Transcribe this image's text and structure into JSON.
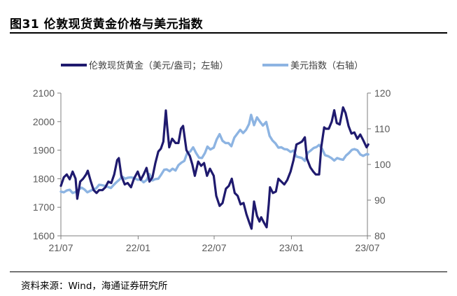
{
  "header": {
    "title": "图31 伦敦现货黄金价格与美元指数"
  },
  "footer": {
    "source": "资料来源：Wind，海通证券研究所"
  },
  "chart_data": {
    "type": "line",
    "title": "图31 伦敦现货黄金价格与美元指数",
    "x_ticks": [
      "21/07",
      "22/01",
      "22/07",
      "23/01",
      "23/07"
    ],
    "x_range": [
      "2021-07",
      "2023-07"
    ],
    "y_left": {
      "ticks": [
        1600,
        1700,
        1800,
        1900,
        2000,
        2100
      ],
      "range": [
        1600,
        2100
      ]
    },
    "y_right": {
      "ticks": [
        80,
        90,
        100,
        110,
        120
      ],
      "range": [
        80,
        120
      ]
    },
    "legend_position": "top",
    "series": [
      {
        "name": "伦敦现货黄金（美元/盎司；左轴）",
        "axis": "left",
        "color": "#1f1a6e",
        "points": [
          [
            "2021-07-01",
            1775
          ],
          [
            "2021-07-08",
            1805
          ],
          [
            "2021-07-15",
            1815
          ],
          [
            "2021-07-22",
            1798
          ],
          [
            "2021-07-29",
            1825
          ],
          [
            "2021-08-05",
            1800
          ],
          [
            "2021-08-09",
            1730
          ],
          [
            "2021-08-16",
            1790
          ],
          [
            "2021-08-23",
            1800
          ],
          [
            "2021-08-30",
            1815
          ],
          [
            "2021-09-03",
            1828
          ],
          [
            "2021-09-10",
            1792
          ],
          [
            "2021-09-17",
            1760
          ],
          [
            "2021-09-24",
            1750
          ],
          [
            "2021-09-30",
            1760
          ],
          [
            "2021-10-08",
            1760
          ],
          [
            "2021-10-15",
            1770
          ],
          [
            "2021-10-22",
            1790
          ],
          [
            "2021-10-29",
            1785
          ],
          [
            "2021-11-05",
            1815
          ],
          [
            "2021-11-12",
            1865
          ],
          [
            "2021-11-16",
            1872
          ],
          [
            "2021-11-22",
            1810
          ],
          [
            "2021-11-30",
            1780
          ],
          [
            "2021-12-07",
            1785
          ],
          [
            "2021-12-15",
            1770
          ],
          [
            "2021-12-22",
            1800
          ],
          [
            "2021-12-31",
            1825
          ],
          [
            "2022-01-07",
            1796
          ],
          [
            "2022-01-14",
            1815
          ],
          [
            "2022-01-21",
            1838
          ],
          [
            "2022-01-28",
            1790
          ],
          [
            "2022-02-04",
            1805
          ],
          [
            "2022-02-11",
            1855
          ],
          [
            "2022-02-18",
            1895
          ],
          [
            "2022-02-24",
            1905
          ],
          [
            "2022-03-02",
            1930
          ],
          [
            "2022-03-08",
            2039
          ],
          [
            "2022-03-11",
            1985
          ],
          [
            "2022-03-16",
            1910
          ],
          [
            "2022-03-23",
            1940
          ],
          [
            "2022-03-31",
            1925
          ],
          [
            "2022-04-07",
            1925
          ],
          [
            "2022-04-13",
            1975
          ],
          [
            "2022-04-18",
            1985
          ],
          [
            "2022-04-26",
            1900
          ],
          [
            "2022-05-04",
            1880
          ],
          [
            "2022-05-10",
            1850
          ],
          [
            "2022-05-16",
            1810
          ],
          [
            "2022-05-24",
            1860
          ],
          [
            "2022-05-31",
            1845
          ],
          [
            "2022-06-07",
            1855
          ],
          [
            "2022-06-14",
            1810
          ],
          [
            "2022-06-21",
            1835
          ],
          [
            "2022-06-30",
            1810
          ],
          [
            "2022-07-06",
            1740
          ],
          [
            "2022-07-14",
            1705
          ],
          [
            "2022-07-21",
            1715
          ],
          [
            "2022-07-29",
            1765
          ],
          [
            "2022-08-05",
            1775
          ],
          [
            "2022-08-12",
            1800
          ],
          [
            "2022-08-19",
            1750
          ],
          [
            "2022-08-26",
            1740
          ],
          [
            "2022-09-02",
            1710
          ],
          [
            "2022-09-09",
            1715
          ],
          [
            "2022-09-16",
            1675
          ],
          [
            "2022-09-23",
            1645
          ],
          [
            "2022-09-28",
            1625
          ],
          [
            "2022-10-04",
            1720
          ],
          [
            "2022-10-11",
            1670
          ],
          [
            "2022-10-17",
            1650
          ],
          [
            "2022-10-21",
            1665
          ],
          [
            "2022-10-28",
            1645
          ],
          [
            "2022-11-03",
            1630
          ],
          [
            "2022-11-08",
            1710
          ],
          [
            "2022-11-11",
            1770
          ],
          [
            "2022-11-18",
            1750
          ],
          [
            "2022-11-25",
            1755
          ],
          [
            "2022-12-01",
            1800
          ],
          [
            "2022-12-08",
            1790
          ],
          [
            "2022-12-15",
            1780
          ],
          [
            "2022-12-22",
            1795
          ],
          [
            "2022-12-30",
            1825
          ],
          [
            "2023-01-06",
            1865
          ],
          [
            "2023-01-13",
            1920
          ],
          [
            "2023-01-20",
            1925
          ],
          [
            "2023-01-26",
            1930
          ],
          [
            "2023-02-02",
            1945
          ],
          [
            "2023-02-07",
            1870
          ],
          [
            "2023-02-15",
            1840
          ],
          [
            "2023-02-22",
            1825
          ],
          [
            "2023-02-28",
            1815
          ],
          [
            "2023-03-08",
            1815
          ],
          [
            "2023-03-13",
            1910
          ],
          [
            "2023-03-20",
            1980
          ],
          [
            "2023-03-24",
            1975
          ],
          [
            "2023-03-31",
            1975
          ],
          [
            "2023-04-07",
            2000
          ],
          [
            "2023-04-13",
            2040
          ],
          [
            "2023-04-19",
            1995
          ],
          [
            "2023-04-26",
            1990
          ],
          [
            "2023-05-04",
            2050
          ],
          [
            "2023-05-10",
            2030
          ],
          [
            "2023-05-17",
            1985
          ],
          [
            "2023-05-24",
            1958
          ],
          [
            "2023-05-31",
            1962
          ],
          [
            "2023-06-07",
            1940
          ],
          [
            "2023-06-14",
            1955
          ],
          [
            "2023-06-21",
            1935
          ],
          [
            "2023-06-29",
            1910
          ],
          [
            "2023-07-03",
            1920
          ]
        ]
      },
      {
        "name": "美元指数（右轴）",
        "axis": "right",
        "color": "#8db4e2",
        "points": [
          [
            "2021-07-01",
            92.4
          ],
          [
            "2021-07-08",
            92.2
          ],
          [
            "2021-07-15",
            92.7
          ],
          [
            "2021-07-22",
            92.9
          ],
          [
            "2021-07-29",
            92.0
          ],
          [
            "2021-08-05",
            92.3
          ],
          [
            "2021-08-12",
            92.9
          ],
          [
            "2021-08-19",
            93.5
          ],
          [
            "2021-08-26",
            93.0
          ],
          [
            "2021-09-02",
            92.2
          ],
          [
            "2021-09-09",
            92.6
          ],
          [
            "2021-09-16",
            93.0
          ],
          [
            "2021-09-23",
            93.3
          ],
          [
            "2021-09-30",
            94.3
          ],
          [
            "2021-10-07",
            94.2
          ],
          [
            "2021-10-14",
            94.0
          ],
          [
            "2021-10-21",
            93.7
          ],
          [
            "2021-10-28",
            93.4
          ],
          [
            "2021-11-04",
            94.3
          ],
          [
            "2021-11-11",
            95.1
          ],
          [
            "2021-11-18",
            95.8
          ],
          [
            "2021-11-24",
            96.6
          ],
          [
            "2021-12-01",
            96.0
          ],
          [
            "2021-12-08",
            96.3
          ],
          [
            "2021-12-15",
            96.4
          ],
          [
            "2021-12-22",
            96.2
          ],
          [
            "2021-12-31",
            95.7
          ],
          [
            "2022-01-07",
            95.8
          ],
          [
            "2022-01-14",
            95.0
          ],
          [
            "2022-01-21",
            95.6
          ],
          [
            "2022-01-28",
            97.3
          ],
          [
            "2022-02-04",
            95.5
          ],
          [
            "2022-02-11",
            95.9
          ],
          [
            "2022-02-18",
            96.0
          ],
          [
            "2022-02-24",
            97.0
          ],
          [
            "2022-03-04",
            98.5
          ],
          [
            "2022-03-10",
            98.6
          ],
          [
            "2022-03-17",
            98.1
          ],
          [
            "2022-03-24",
            98.8
          ],
          [
            "2022-03-31",
            98.3
          ],
          [
            "2022-04-07",
            99.8
          ],
          [
            "2022-04-14",
            100.5
          ],
          [
            "2022-04-21",
            101.0
          ],
          [
            "2022-04-28",
            103.3
          ],
          [
            "2022-05-05",
            103.6
          ],
          [
            "2022-05-12",
            104.8
          ],
          [
            "2022-05-19",
            103.2
          ],
          [
            "2022-05-26",
            101.9
          ],
          [
            "2022-06-02",
            101.8
          ],
          [
            "2022-06-09",
            103.2
          ],
          [
            "2022-06-15",
            105.0
          ],
          [
            "2022-06-22",
            104.2
          ],
          [
            "2022-06-30",
            104.7
          ],
          [
            "2022-07-07",
            107.0
          ],
          [
            "2022-07-14",
            108.5
          ],
          [
            "2022-07-21",
            106.6
          ],
          [
            "2022-07-28",
            106.0
          ],
          [
            "2022-08-04",
            106.0
          ],
          [
            "2022-08-11",
            105.1
          ],
          [
            "2022-08-18",
            107.5
          ],
          [
            "2022-08-25",
            108.6
          ],
          [
            "2022-09-01",
            109.7
          ],
          [
            "2022-09-08",
            108.8
          ],
          [
            "2022-09-15",
            109.7
          ],
          [
            "2022-09-22",
            111.3
          ],
          [
            "2022-09-27",
            113.9
          ],
          [
            "2022-10-04",
            111.0
          ],
          [
            "2022-10-11",
            113.2
          ],
          [
            "2022-10-18",
            112.0
          ],
          [
            "2022-10-25",
            110.9
          ],
          [
            "2022-11-02",
            111.9
          ],
          [
            "2022-11-10",
            108.0
          ],
          [
            "2022-11-17",
            106.7
          ],
          [
            "2022-11-24",
            105.9
          ],
          [
            "2022-12-01",
            104.7
          ],
          [
            "2022-12-08",
            104.8
          ],
          [
            "2022-12-15",
            104.3
          ],
          [
            "2022-12-22",
            104.2
          ],
          [
            "2022-12-30",
            103.5
          ],
          [
            "2023-01-06",
            103.9
          ],
          [
            "2023-01-13",
            102.2
          ],
          [
            "2023-01-20",
            102.0
          ],
          [
            "2023-01-26",
            101.8
          ],
          [
            "2023-02-02",
            101.0
          ],
          [
            "2023-02-09",
            103.3
          ],
          [
            "2023-02-16",
            103.9
          ],
          [
            "2023-02-23",
            104.6
          ],
          [
            "2023-03-02",
            104.9
          ],
          [
            "2023-03-08",
            105.5
          ],
          [
            "2023-03-15",
            104.4
          ],
          [
            "2023-03-22",
            102.6
          ],
          [
            "2023-03-30",
            102.3
          ],
          [
            "2023-04-06",
            101.8
          ],
          [
            "2023-04-13",
            101.1
          ],
          [
            "2023-04-20",
            101.8
          ],
          [
            "2023-04-27",
            101.5
          ],
          [
            "2023-05-04",
            101.3
          ],
          [
            "2023-05-11",
            102.5
          ],
          [
            "2023-05-18",
            103.2
          ],
          [
            "2023-05-25",
            104.1
          ],
          [
            "2023-05-31",
            104.3
          ],
          [
            "2023-06-07",
            104.0
          ],
          [
            "2023-06-14",
            102.8
          ],
          [
            "2023-06-21",
            102.4
          ],
          [
            "2023-06-29",
            102.9
          ],
          [
            "2023-07-03",
            102.8
          ]
        ]
      }
    ]
  }
}
